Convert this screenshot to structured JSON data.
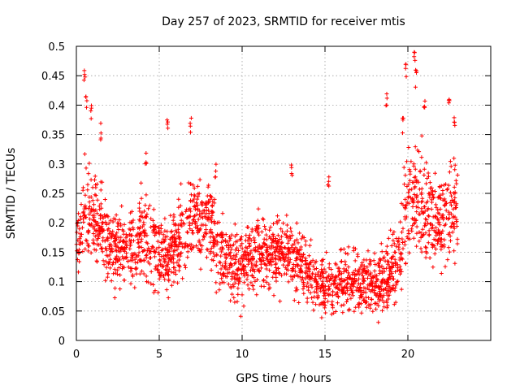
{
  "chart_data": {
    "type": "scatter",
    "title": "Day 257 of 2023, SRMTID for receiver mtis",
    "xlabel": "GPS time / hours",
    "ylabel": "SRMTID / TECUs",
    "xlim": [
      0,
      25
    ],
    "ylim": [
      0,
      0.5
    ],
    "xticks": [
      0,
      5,
      10,
      15,
      20
    ],
    "xtick_labels": [
      "0",
      "5",
      "10",
      "15",
      "20"
    ],
    "yticks": [
      0,
      0.05,
      0.1,
      0.15,
      0.2,
      0.25,
      0.3,
      0.35,
      0.4,
      0.45,
      0.5
    ],
    "ytick_labels": [
      "0",
      "0.05",
      "0.1",
      "0.15",
      "0.2",
      "0.25",
      "0.3",
      "0.35",
      "0.4",
      "0.45",
      "0.5"
    ],
    "grid": true,
    "marker": "plus",
    "color": "#ff0000",
    "series": [
      {
        "name": "SRMTID",
        "profile": {
          "hours": [
            0.0,
            0.5,
            1.0,
            1.5,
            2.0,
            2.5,
            3.0,
            3.5,
            4.0,
            4.5,
            5.0,
            5.5,
            6.0,
            6.5,
            7.0,
            7.5,
            8.0,
            8.5,
            9.0,
            9.5,
            10.0,
            10.5,
            11.0,
            11.5,
            12.0,
            12.5,
            13.0,
            13.5,
            14.0,
            14.5,
            15.0,
            15.5,
            16.0,
            16.5,
            17.0,
            17.5,
            18.0,
            18.5,
            19.0,
            19.5,
            20.0,
            20.5,
            21.0,
            21.5,
            22.0,
            22.5,
            23.0
          ],
          "median": [
            0.15,
            0.22,
            0.21,
            0.19,
            0.16,
            0.15,
            0.17,
            0.15,
            0.18,
            0.17,
            0.15,
            0.14,
            0.17,
            0.19,
            0.2,
            0.2,
            0.21,
            0.15,
            0.14,
            0.13,
            0.13,
            0.14,
            0.15,
            0.14,
            0.15,
            0.15,
            0.14,
            0.13,
            0.11,
            0.1,
            0.09,
            0.09,
            0.1,
            0.1,
            0.1,
            0.1,
            0.09,
            0.1,
            0.12,
            0.15,
            0.22,
            0.24,
            0.22,
            0.2,
            0.2,
            0.22,
            0.22
          ],
          "spread": [
            0.05,
            0.07,
            0.06,
            0.06,
            0.05,
            0.05,
            0.05,
            0.05,
            0.06,
            0.06,
            0.05,
            0.05,
            0.05,
            0.06,
            0.06,
            0.05,
            0.05,
            0.05,
            0.05,
            0.05,
            0.05,
            0.05,
            0.05,
            0.05,
            0.05,
            0.05,
            0.05,
            0.04,
            0.04,
            0.04,
            0.04,
            0.04,
            0.04,
            0.04,
            0.04,
            0.04,
            0.04,
            0.04,
            0.05,
            0.07,
            0.08,
            0.08,
            0.07,
            0.06,
            0.06,
            0.07,
            0.06
          ]
        },
        "n_points": 2300,
        "peaks": [
          {
            "x": 0.5,
            "y": 0.47
          },
          {
            "x": 0.6,
            "y": 0.42
          },
          {
            "x": 0.9,
            "y": 0.4
          },
          {
            "x": 1.5,
            "y": 0.37
          },
          {
            "x": 4.2,
            "y": 0.33
          },
          {
            "x": 5.5,
            "y": 0.38
          },
          {
            "x": 6.9,
            "y": 0.38
          },
          {
            "x": 8.4,
            "y": 0.3
          },
          {
            "x": 13.0,
            "y": 0.3
          },
          {
            "x": 15.2,
            "y": 0.29
          },
          {
            "x": 18.7,
            "y": 0.42
          },
          {
            "x": 19.7,
            "y": 0.38
          },
          {
            "x": 19.9,
            "y": 0.47
          },
          {
            "x": 20.4,
            "y": 0.5
          },
          {
            "x": 20.5,
            "y": 0.46
          },
          {
            "x": 21.0,
            "y": 0.42
          },
          {
            "x": 22.5,
            "y": 0.41
          },
          {
            "x": 22.8,
            "y": 0.39
          }
        ]
      }
    ]
  }
}
